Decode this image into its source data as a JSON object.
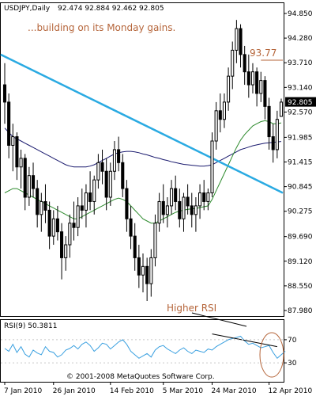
{
  "header": {
    "symbol_tf": "USDJPY,Daily",
    "ohlc": "92.474 92.884 92.462 92.805"
  },
  "annotations": {
    "subtitle": "...building on its Monday gains.",
    "level_label": "93.77",
    "rsi_note": "Higher RSI",
    "copyright": "© 2001-2008 MetaQuotes Software Corp."
  },
  "colors": {
    "candle": "#000000",
    "trendline": "#2aaae2",
    "ma_slow": "#1a1a6e",
    "ma_fast": "#2e8b2e",
    "rsi_line": "#3aa0e0",
    "annotation": "#b5653a",
    "grid": "#c8c8c8",
    "price_tag_bg": "#000000",
    "price_tag_fg": "#ffffff"
  },
  "chart_data": [
    {
      "type": "candlestick",
      "title": "USDJPY,Daily",
      "last_price": "92.805",
      "y_ticks": [
        "94.850",
        "94.280",
        "93.710",
        "93.140",
        "92.570",
        "91.985",
        "91.415",
        "90.845",
        "90.275",
        "89.690",
        "89.120",
        "88.550",
        "87.980"
      ],
      "y_tick_values": [
        94.85,
        94.28,
        93.71,
        93.14,
        92.57,
        91.985,
        91.415,
        90.845,
        90.275,
        89.69,
        89.12,
        88.55,
        87.98
      ],
      "ylim": [
        87.98,
        94.85
      ],
      "x_ticks": [
        "7 Jan 2010",
        "26 Jan 2010",
        "14 Feb 2010",
        "5 Mar 2010",
        "24 Mar 2010",
        "12 Apr 2010"
      ],
      "x_tick_index": [
        0,
        12,
        26,
        39,
        51,
        65
      ],
      "candles": [
        {
          "o": 93.2,
          "h": 93.7,
          "l": 92.3,
          "c": 92.8
        },
        {
          "o": 92.8,
          "h": 93.0,
          "l": 91.5,
          "c": 91.8
        },
        {
          "o": 91.8,
          "h": 92.3,
          "l": 91.2,
          "c": 92.0
        },
        {
          "o": 92.0,
          "h": 92.1,
          "l": 91.0,
          "c": 91.3
        },
        {
          "o": 91.3,
          "h": 91.7,
          "l": 90.8,
          "c": 91.5
        },
        {
          "o": 91.5,
          "h": 91.6,
          "l": 90.3,
          "c": 90.6
        },
        {
          "o": 90.6,
          "h": 91.3,
          "l": 90.4,
          "c": 91.1
        },
        {
          "o": 91.1,
          "h": 91.4,
          "l": 90.6,
          "c": 90.8
        },
        {
          "o": 90.8,
          "h": 91.0,
          "l": 89.9,
          "c": 90.2
        },
        {
          "o": 90.2,
          "h": 90.7,
          "l": 89.8,
          "c": 90.5
        },
        {
          "o": 90.5,
          "h": 90.9,
          "l": 90.0,
          "c": 90.3
        },
        {
          "o": 90.3,
          "h": 90.5,
          "l": 89.4,
          "c": 89.7
        },
        {
          "o": 89.7,
          "h": 90.3,
          "l": 89.5,
          "c": 90.1
        },
        {
          "o": 90.1,
          "h": 90.4,
          "l": 89.6,
          "c": 89.8
        },
        {
          "o": 89.8,
          "h": 90.0,
          "l": 88.7,
          "c": 89.2
        },
        {
          "o": 89.2,
          "h": 89.7,
          "l": 88.9,
          "c": 89.5
        },
        {
          "o": 89.5,
          "h": 90.2,
          "l": 89.2,
          "c": 90.0
        },
        {
          "o": 90.0,
          "h": 90.5,
          "l": 89.6,
          "c": 89.9
        },
        {
          "o": 89.9,
          "h": 90.6,
          "l": 89.7,
          "c": 90.4
        },
        {
          "o": 90.4,
          "h": 90.8,
          "l": 90.1,
          "c": 90.3
        },
        {
          "o": 90.3,
          "h": 90.9,
          "l": 89.9,
          "c": 90.7
        },
        {
          "o": 90.7,
          "h": 91.2,
          "l": 90.3,
          "c": 90.5
        },
        {
          "o": 90.5,
          "h": 91.1,
          "l": 90.2,
          "c": 91.0
        },
        {
          "o": 91.0,
          "h": 91.6,
          "l": 90.8,
          "c": 91.4
        },
        {
          "o": 91.4,
          "h": 91.7,
          "l": 90.9,
          "c": 91.2
        },
        {
          "o": 91.2,
          "h": 91.5,
          "l": 90.3,
          "c": 90.6
        },
        {
          "o": 90.6,
          "h": 91.4,
          "l": 90.4,
          "c": 91.2
        },
        {
          "o": 91.2,
          "h": 91.9,
          "l": 91.0,
          "c": 91.7
        },
        {
          "o": 91.7,
          "h": 92.0,
          "l": 91.2,
          "c": 91.4
        },
        {
          "o": 91.4,
          "h": 91.6,
          "l": 90.6,
          "c": 90.8
        },
        {
          "o": 90.8,
          "h": 91.0,
          "l": 89.8,
          "c": 90.1
        },
        {
          "o": 90.1,
          "h": 90.4,
          "l": 89.4,
          "c": 89.7
        },
        {
          "o": 89.7,
          "h": 90.0,
          "l": 88.9,
          "c": 89.2
        },
        {
          "o": 89.2,
          "h": 89.5,
          "l": 88.5,
          "c": 88.8
        },
        {
          "o": 88.8,
          "h": 89.3,
          "l": 88.4,
          "c": 89.0
        },
        {
          "o": 89.0,
          "h": 89.2,
          "l": 88.2,
          "c": 88.6
        },
        {
          "o": 88.6,
          "h": 89.4,
          "l": 88.3,
          "c": 89.2
        },
        {
          "o": 89.2,
          "h": 90.2,
          "l": 89.0,
          "c": 90.0
        },
        {
          "o": 90.0,
          "h": 90.7,
          "l": 89.8,
          "c": 90.5
        },
        {
          "o": 90.5,
          "h": 90.9,
          "l": 90.0,
          "c": 90.2
        },
        {
          "o": 90.2,
          "h": 90.6,
          "l": 89.9,
          "c": 90.4
        },
        {
          "o": 90.4,
          "h": 91.0,
          "l": 90.2,
          "c": 90.8
        },
        {
          "o": 90.8,
          "h": 91.1,
          "l": 90.3,
          "c": 90.5
        },
        {
          "o": 90.5,
          "h": 90.8,
          "l": 89.9,
          "c": 90.1
        },
        {
          "o": 90.1,
          "h": 90.7,
          "l": 89.8,
          "c": 90.6
        },
        {
          "o": 90.6,
          "h": 90.9,
          "l": 90.2,
          "c": 90.4
        },
        {
          "o": 90.4,
          "h": 90.7,
          "l": 89.9,
          "c": 90.2
        },
        {
          "o": 90.2,
          "h": 90.6,
          "l": 89.8,
          "c": 90.4
        },
        {
          "o": 90.4,
          "h": 90.9,
          "l": 90.1,
          "c": 90.7
        },
        {
          "o": 90.7,
          "h": 91.0,
          "l": 90.3,
          "c": 90.5
        },
        {
          "o": 90.5,
          "h": 90.8,
          "l": 90.3,
          "c": 90.7
        },
        {
          "o": 90.7,
          "h": 92.1,
          "l": 90.6,
          "c": 91.9
        },
        {
          "o": 91.9,
          "h": 92.8,
          "l": 91.7,
          "c": 92.6
        },
        {
          "o": 92.6,
          "h": 93.0,
          "l": 92.1,
          "c": 92.4
        },
        {
          "o": 92.4,
          "h": 93.0,
          "l": 92.2,
          "c": 92.8
        },
        {
          "o": 92.8,
          "h": 93.6,
          "l": 92.6,
          "c": 93.4
        },
        {
          "o": 93.4,
          "h": 94.2,
          "l": 93.1,
          "c": 94.0
        },
        {
          "o": 94.0,
          "h": 94.7,
          "l": 93.7,
          "c": 94.5
        },
        {
          "o": 94.5,
          "h": 94.6,
          "l": 93.6,
          "c": 93.9
        },
        {
          "o": 93.9,
          "h": 94.1,
          "l": 93.2,
          "c": 93.5
        },
        {
          "o": 93.5,
          "h": 93.9,
          "l": 92.9,
          "c": 93.2
        },
        {
          "o": 93.2,
          "h": 93.7,
          "l": 93.0,
          "c": 93.5
        },
        {
          "o": 93.5,
          "h": 93.6,
          "l": 92.7,
          "c": 93.0
        },
        {
          "o": 93.0,
          "h": 93.5,
          "l": 92.8,
          "c": 93.3
        },
        {
          "o": 93.3,
          "h": 93.4,
          "l": 92.4,
          "c": 92.7
        },
        {
          "o": 92.7,
          "h": 92.9,
          "l": 91.7,
          "c": 92.0
        },
        {
          "o": 92.0,
          "h": 92.3,
          "l": 91.4,
          "c": 91.7
        },
        {
          "o": 91.7,
          "h": 92.6,
          "l": 91.5,
          "c": 92.4
        },
        {
          "o": 92.47,
          "h": 92.88,
          "l": 92.46,
          "c": 92.8
        }
      ],
      "ma_slow": [
        92.2,
        92.1,
        92.0,
        91.95,
        91.9,
        91.85,
        91.8,
        91.75,
        91.7,
        91.65,
        91.6,
        91.55,
        91.5,
        91.45,
        91.4,
        91.35,
        91.32,
        91.3,
        91.3,
        91.3,
        91.3,
        91.32,
        91.35,
        91.4,
        91.45,
        91.5,
        91.55,
        91.6,
        91.63,
        91.65,
        91.66,
        91.66,
        91.65,
        91.63,
        91.6,
        91.58,
        91.55,
        91.52,
        91.5,
        91.47,
        91.45,
        91.42,
        91.4,
        91.38,
        91.36,
        91.35,
        91.34,
        91.33,
        91.32,
        91.32,
        91.33,
        91.35,
        91.4,
        91.45,
        91.5,
        91.55,
        91.6,
        91.65,
        91.7,
        91.73,
        91.76,
        91.79,
        91.81,
        91.83,
        91.85,
        91.86,
        91.87,
        91.88,
        91.89
      ],
      "ma_fast": [
        90.7,
        90.75,
        90.8,
        90.8,
        90.75,
        90.7,
        90.65,
        90.6,
        90.55,
        90.5,
        90.45,
        90.4,
        90.35,
        90.3,
        90.25,
        90.2,
        90.15,
        90.1,
        90.1,
        90.15,
        90.2,
        90.25,
        90.3,
        90.35,
        90.4,
        90.45,
        90.5,
        90.55,
        90.58,
        90.55,
        90.5,
        90.4,
        90.3,
        90.2,
        90.1,
        90.05,
        90.0,
        90.0,
        90.05,
        90.1,
        90.15,
        90.2,
        90.25,
        90.28,
        90.3,
        90.32,
        90.33,
        90.34,
        90.36,
        90.38,
        90.4,
        90.55,
        90.75,
        90.95,
        91.15,
        91.35,
        91.55,
        91.75,
        91.92,
        92.05,
        92.15,
        92.25,
        92.3,
        92.35,
        92.37,
        92.35,
        92.3,
        92.3,
        92.32
      ],
      "trendline": {
        "start": {
          "index": -1,
          "value": 93.9
        },
        "end": {
          "index": 73,
          "value": 90.7
        }
      },
      "resistance": {
        "value": 93.77,
        "start_index": 63,
        "end_index": 73
      }
    },
    {
      "type": "line",
      "title": "RSI(9) 50.3811",
      "ylim": [
        0,
        100
      ],
      "y_ticks": [
        "70",
        "30"
      ],
      "y_tick_values": [
        70,
        30
      ],
      "series": [
        {
          "values": [
            55,
            50,
            62,
            48,
            58,
            45,
            40,
            52,
            47,
            44,
            58,
            50,
            48,
            40,
            44,
            52,
            55,
            60,
            54,
            62,
            66,
            60,
            50,
            56,
            64,
            62,
            54,
            60,
            66,
            70,
            62,
            50,
            44,
            38,
            42,
            46,
            40,
            52,
            58,
            60,
            54,
            50,
            46,
            52,
            56,
            50,
            46,
            52,
            50,
            48,
            54,
            52,
            58,
            62,
            66,
            70,
            72,
            74,
            76,
            68,
            62,
            64,
            60,
            56,
            58,
            60,
            48,
            38,
            44,
            50
          ]
        }
      ],
      "trend_segment": {
        "start": {
          "index": 51,
          "value": 80
        },
        "end": {
          "index": 67,
          "value": 58
        }
      }
    }
  ]
}
